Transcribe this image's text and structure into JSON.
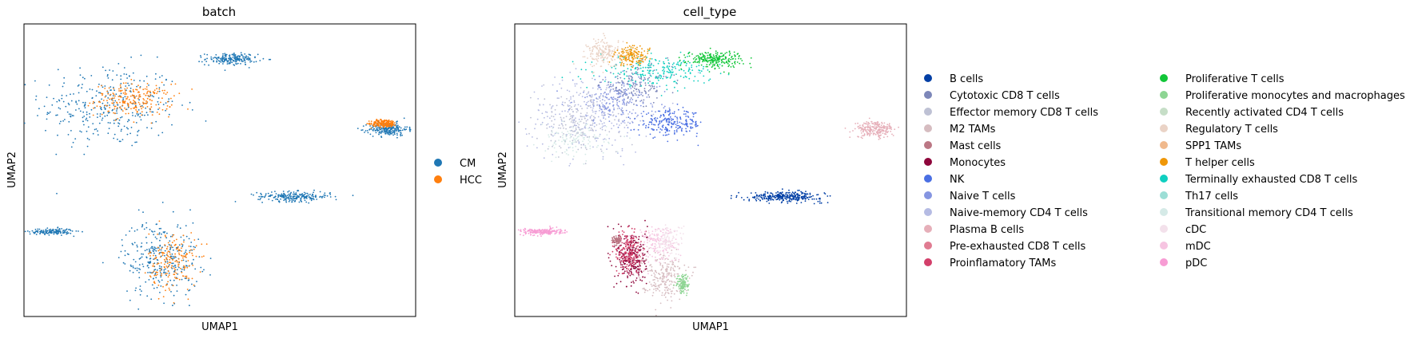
{
  "chart_data": [
    {
      "type": "scatter",
      "title": "batch",
      "xlabel": "UMAP1",
      "ylabel": "UMAP2",
      "ticks": "none",
      "grid": false,
      "legend_placement": "right",
      "legend": [
        {
          "name": "CM",
          "color": "#1f77b4"
        },
        {
          "name": "HCC",
          "color": "#ff7f0e"
        }
      ],
      "clusters": [
        {
          "label": "CM",
          "cx": 2.2,
          "cy": 7.2,
          "rx": 1.6,
          "ry": 1.3,
          "density": 0.9
        },
        {
          "label": "HCC",
          "cx": 2.8,
          "cy": 7.4,
          "rx": 0.9,
          "ry": 0.5,
          "density": 0.6
        },
        {
          "label": "CM",
          "cx": 5.3,
          "cy": 8.8,
          "rx": 0.6,
          "ry": 0.18,
          "density": 0.5
        },
        {
          "label": "CM",
          "cx": 9.3,
          "cy": 6.4,
          "rx": 0.45,
          "ry": 0.2,
          "density": 0.6
        },
        {
          "label": "HCC",
          "cx": 9.2,
          "cy": 6.6,
          "rx": 0.3,
          "ry": 0.12,
          "density": 0.5
        },
        {
          "label": "CM",
          "cx": 6.9,
          "cy": 4.1,
          "rx": 0.85,
          "ry": 0.15,
          "density": 0.6
        },
        {
          "label": "CM",
          "cx": 0.7,
          "cy": 2.9,
          "rx": 0.5,
          "ry": 0.1,
          "density": 0.4
        },
        {
          "label": "CM",
          "cx": 3.5,
          "cy": 2.0,
          "rx": 0.9,
          "ry": 1.2,
          "density": 0.8
        },
        {
          "label": "HCC",
          "cx": 3.8,
          "cy": 1.9,
          "rx": 0.55,
          "ry": 0.9,
          "density": 0.5
        }
      ]
    },
    {
      "type": "scatter",
      "title": "cell_type",
      "xlabel": "UMAP1",
      "ylabel": "UMAP2",
      "ticks": "none",
      "grid": false,
      "legend_placement": "right",
      "legend": [
        {
          "name": "B cells",
          "color": "#023fa5"
        },
        {
          "name": "Cytotoxic CD8 T cells",
          "color": "#7d87b9"
        },
        {
          "name": "Effector memory CD8 T cells",
          "color": "#bec1d4"
        },
        {
          "name": "M2 TAMs",
          "color": "#d6bcc0"
        },
        {
          "name": "Mast cells",
          "color": "#bb7784"
        },
        {
          "name": "Monocytes",
          "color": "#8e063b"
        },
        {
          "name": "NK",
          "color": "#4a6fe3"
        },
        {
          "name": "Naive T cells",
          "color": "#8595e1"
        },
        {
          "name": "Naive-memory CD4 T cells",
          "color": "#b5bbe3"
        },
        {
          "name": "Plasma B cells",
          "color": "#e6afb9"
        },
        {
          "name": "Pre-exhausted CD8 T cells",
          "color": "#e07b91"
        },
        {
          "name": "Proinflamatory TAMs",
          "color": "#d33f6a"
        },
        {
          "name": "Proliferative T cells",
          "color": "#11c638"
        },
        {
          "name": "Proliferative monocytes and macrophages",
          "color": "#8dd593"
        },
        {
          "name": "Recently activated CD4 T cells",
          "color": "#c6dec7"
        },
        {
          "name": "Regulatory T cells",
          "color": "#ead3c6"
        },
        {
          "name": "SPP1 TAMs",
          "color": "#f0b98d"
        },
        {
          "name": "T helper cells",
          "color": "#ef9708"
        },
        {
          "name": "Terminally exhausted CD8 T cells",
          "color": "#0fcfc0"
        },
        {
          "name": "Th17 cells",
          "color": "#9cded6"
        },
        {
          "name": "Transitional memory CD4 T cells",
          "color": "#d5eae7"
        },
        {
          "name": "cDC",
          "color": "#f3e1eb"
        },
        {
          "name": "mDC",
          "color": "#f6c4e1"
        },
        {
          "name": "pDC",
          "color": "#f79cd4"
        }
      ],
      "clusters": [
        {
          "label": "Naive-memory CD4 T cells",
          "cx": 1.9,
          "cy": 6.9,
          "rx": 1.4,
          "ry": 1.2,
          "density": 0.7
        },
        {
          "label": "Effector memory CD8 T cells",
          "cx": 1.6,
          "cy": 6.6,
          "rx": 1.0,
          "ry": 1.0,
          "density": 0.5
        },
        {
          "label": "Naive T cells",
          "cx": 2.6,
          "cy": 7.4,
          "rx": 1.0,
          "ry": 0.7,
          "density": 0.5
        },
        {
          "label": "Cytotoxic CD8 T cells",
          "cx": 3.1,
          "cy": 7.9,
          "rx": 0.8,
          "ry": 0.6,
          "density": 0.4
        },
        {
          "label": "NK",
          "cx": 4.0,
          "cy": 6.6,
          "rx": 0.75,
          "ry": 0.4,
          "density": 0.6
        },
        {
          "label": "Terminally exhausted CD8 T cells",
          "cx": 3.6,
          "cy": 8.4,
          "rx": 1.3,
          "ry": 0.45,
          "density": 0.6
        },
        {
          "label": "Proliferative T cells",
          "cx": 5.1,
          "cy": 8.8,
          "rx": 0.65,
          "ry": 0.25,
          "density": 0.6
        },
        {
          "label": "Regulatory T cells",
          "cx": 2.3,
          "cy": 9.0,
          "rx": 0.4,
          "ry": 0.45,
          "density": 0.5
        },
        {
          "label": "T helper cells",
          "cx": 3.0,
          "cy": 8.9,
          "rx": 0.4,
          "ry": 0.3,
          "density": 0.4
        },
        {
          "label": "Transitional memory CD4 T cells",
          "cx": 1.5,
          "cy": 6.0,
          "rx": 0.8,
          "ry": 0.5,
          "density": 0.3
        },
        {
          "label": "Plasma B cells",
          "cx": 9.2,
          "cy": 6.4,
          "rx": 0.45,
          "ry": 0.25,
          "density": 0.6
        },
        {
          "label": "B cells",
          "cx": 6.9,
          "cy": 4.1,
          "rx": 0.85,
          "ry": 0.15,
          "density": 0.8
        },
        {
          "label": "pDC",
          "cx": 0.7,
          "cy": 2.9,
          "rx": 0.5,
          "ry": 0.1,
          "density": 0.5
        },
        {
          "label": "Monocytes",
          "cx": 3.0,
          "cy": 2.0,
          "rx": 0.35,
          "ry": 0.9,
          "density": 0.7
        },
        {
          "label": "Proinflamatory TAMs",
          "cx": 2.9,
          "cy": 2.2,
          "rx": 0.3,
          "ry": 0.7,
          "density": 0.5
        },
        {
          "label": "M2 TAMs",
          "cx": 3.8,
          "cy": 1.4,
          "rx": 0.5,
          "ry": 0.7,
          "density": 0.6
        },
        {
          "label": "mDC",
          "cx": 3.6,
          "cy": 2.5,
          "rx": 0.5,
          "ry": 0.6,
          "density": 0.4
        },
        {
          "label": "cDC",
          "cx": 3.9,
          "cy": 2.6,
          "rx": 0.35,
          "ry": 0.5,
          "density": 0.3
        },
        {
          "label": "Proliferative monocytes and macrophages",
          "cx": 4.3,
          "cy": 1.1,
          "rx": 0.15,
          "ry": 0.3,
          "density": 0.3
        },
        {
          "label": "Mast cells",
          "cx": 2.6,
          "cy": 2.6,
          "rx": 0.1,
          "ry": 0.15,
          "density": 0.2
        }
      ]
    }
  ]
}
